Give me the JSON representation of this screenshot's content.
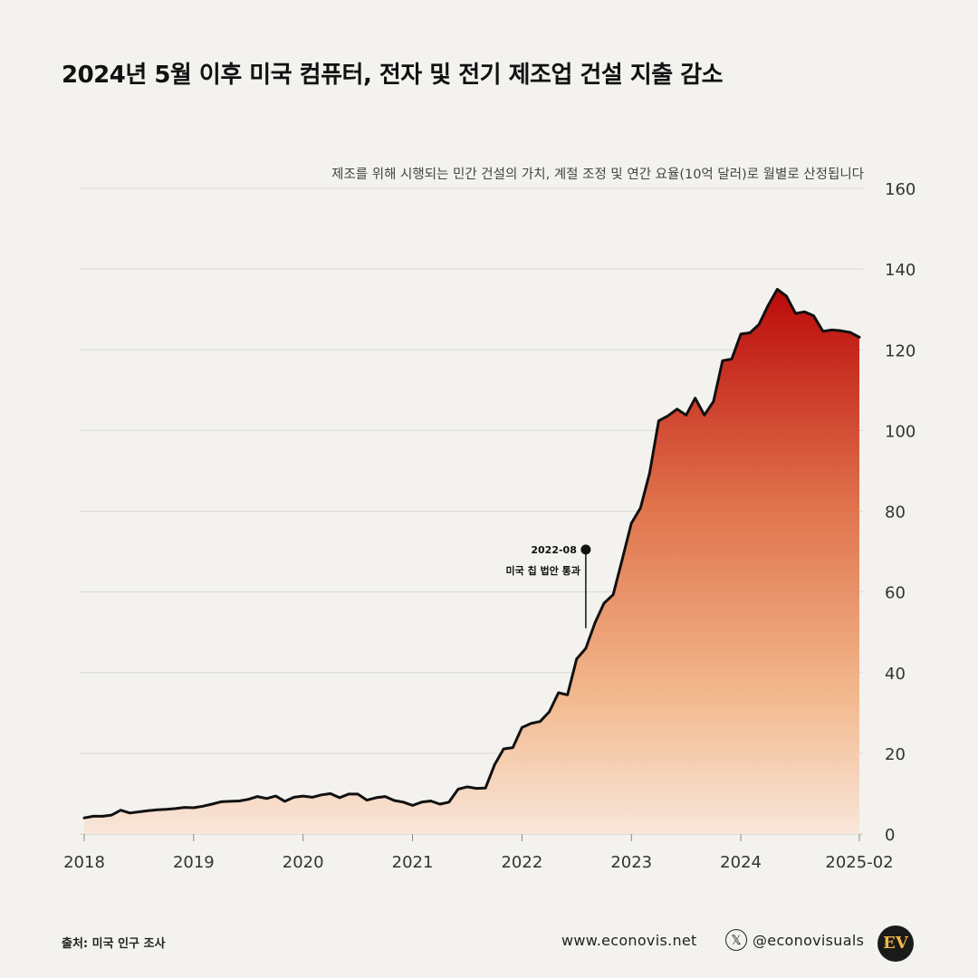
{
  "title": "2024년 5월 이후 미국 컴퓨터, 전자 및 전기 제조업 건설 지출 감소",
  "subtitle": "제조를 위해 시행되는 민간 건설의 가치, 계절 조정 및 연간 요율(10억 달러)로 월별로 산정됩니다",
  "footer": {
    "source": "출처: 미국 인구 조사",
    "site": "www.econovis.net",
    "x_icon": "x-logo-icon",
    "x_glyph": "𝕏",
    "handle": "@econovisuals",
    "logo": "EV"
  },
  "colors": {
    "fill_top": "#bb0a0a",
    "fill_mid": "#e0734c",
    "fill_low": "#f3b98e",
    "fill_bottom": "#f8e6da",
    "line": "#111111",
    "grid": "#d9d8d4"
  },
  "chart_data": {
    "type": "area",
    "title": "2024년 5월 이후 미국 컴퓨터, 전자 및 전기 제조업 건설 지출 감소",
    "ylabel": "",
    "xlabel": "",
    "y_axis_side": "right",
    "ylim": [
      0,
      160
    ],
    "y_ticks": [
      0,
      20,
      40,
      60,
      80,
      100,
      120,
      140,
      160
    ],
    "x_range": [
      "2018-01",
      "2025-02"
    ],
    "x_ticks": [
      {
        "date": "2018-01",
        "label": "2018"
      },
      {
        "date": "2019-01",
        "label": "2019"
      },
      {
        "date": "2020-01",
        "label": "2020"
      },
      {
        "date": "2021-01",
        "label": "2021"
      },
      {
        "date": "2022-01",
        "label": "2022"
      },
      {
        "date": "2023-01",
        "label": "2023"
      },
      {
        "date": "2024-01",
        "label": "2024"
      },
      {
        "date": "2025-02",
        "label": "2025-02"
      }
    ],
    "grid": true,
    "annotation": {
      "date": "2022-08",
      "label": "미국 칩 법안 통과",
      "marker_y": 70.5,
      "line_to_y": 51
    },
    "series": [
      {
        "values": [
          {
            "x": "2018-01",
            "y": 4.0
          },
          {
            "x": "2018-02",
            "y": 4.4
          },
          {
            "x": "2018-03",
            "y": 4.4
          },
          {
            "x": "2018-04",
            "y": 4.7
          },
          {
            "x": "2018-05",
            "y": 5.9
          },
          {
            "x": "2018-06",
            "y": 5.2
          },
          {
            "x": "2018-07",
            "y": 5.5
          },
          {
            "x": "2018-08",
            "y": 5.8
          },
          {
            "x": "2018-09",
            "y": 6.0
          },
          {
            "x": "2018-10",
            "y": 6.1
          },
          {
            "x": "2018-11",
            "y": 6.3
          },
          {
            "x": "2018-12",
            "y": 6.6
          },
          {
            "x": "2019-01",
            "y": 6.5
          },
          {
            "x": "2019-02",
            "y": 6.9
          },
          {
            "x": "2019-03",
            "y": 7.4
          },
          {
            "x": "2019-04",
            "y": 8.0
          },
          {
            "x": "2019-05",
            "y": 8.1
          },
          {
            "x": "2019-06",
            "y": 8.2
          },
          {
            "x": "2019-07",
            "y": 8.6
          },
          {
            "x": "2019-08",
            "y": 9.3
          },
          {
            "x": "2019-09",
            "y": 8.8
          },
          {
            "x": "2019-10",
            "y": 9.4
          },
          {
            "x": "2019-11",
            "y": 8.1
          },
          {
            "x": "2019-12",
            "y": 9.1
          },
          {
            "x": "2020-01",
            "y": 9.4
          },
          {
            "x": "2020-02",
            "y": 9.1
          },
          {
            "x": "2020-03",
            "y": 9.7
          },
          {
            "x": "2020-04",
            "y": 10.0
          },
          {
            "x": "2020-05",
            "y": 9.0
          },
          {
            "x": "2020-06",
            "y": 9.9
          },
          {
            "x": "2020-07",
            "y": 9.9
          },
          {
            "x": "2020-08",
            "y": 8.4
          },
          {
            "x": "2020-09",
            "y": 9.0
          },
          {
            "x": "2020-10",
            "y": 9.3
          },
          {
            "x": "2020-11",
            "y": 8.3
          },
          {
            "x": "2020-12",
            "y": 7.9
          },
          {
            "x": "2021-01",
            "y": 7.1
          },
          {
            "x": "2021-02",
            "y": 7.9
          },
          {
            "x": "2021-03",
            "y": 8.2
          },
          {
            "x": "2021-04",
            "y": 7.4
          },
          {
            "x": "2021-05",
            "y": 7.9
          },
          {
            "x": "2021-06",
            "y": 11.1
          },
          {
            "x": "2021-07",
            "y": 11.7
          },
          {
            "x": "2021-08",
            "y": 11.3
          },
          {
            "x": "2021-09",
            "y": 11.4
          },
          {
            "x": "2021-10",
            "y": 17.2
          },
          {
            "x": "2021-11",
            "y": 21.1
          },
          {
            "x": "2021-12",
            "y": 21.4
          },
          {
            "x": "2022-01",
            "y": 26.4
          },
          {
            "x": "2022-02",
            "y": 27.4
          },
          {
            "x": "2022-03",
            "y": 27.9
          },
          {
            "x": "2022-04",
            "y": 30.3
          },
          {
            "x": "2022-05",
            "y": 35.0
          },
          {
            "x": "2022-06",
            "y": 34.5
          },
          {
            "x": "2022-07",
            "y": 43.4
          },
          {
            "x": "2022-08",
            "y": 46.0
          },
          {
            "x": "2022-09",
            "y": 52.3
          },
          {
            "x": "2022-10",
            "y": 57.2
          },
          {
            "x": "2022-11",
            "y": 59.3
          },
          {
            "x": "2022-12",
            "y": 68.1
          },
          {
            "x": "2023-01",
            "y": 77.0
          },
          {
            "x": "2023-02",
            "y": 80.8
          },
          {
            "x": "2023-03",
            "y": 89.5
          },
          {
            "x": "2023-04",
            "y": 102.4
          },
          {
            "x": "2023-05",
            "y": 103.6
          },
          {
            "x": "2023-06",
            "y": 105.3
          },
          {
            "x": "2023-07",
            "y": 103.8
          },
          {
            "x": "2023-08",
            "y": 108.0
          },
          {
            "x": "2023-09",
            "y": 103.8
          },
          {
            "x": "2023-10",
            "y": 107.2
          },
          {
            "x": "2023-11",
            "y": 117.3
          },
          {
            "x": "2023-12",
            "y": 117.7
          },
          {
            "x": "2024-01",
            "y": 123.9
          },
          {
            "x": "2024-02",
            "y": 124.2
          },
          {
            "x": "2024-03",
            "y": 126.3
          },
          {
            "x": "2024-04",
            "y": 131.0
          },
          {
            "x": "2024-05",
            "y": 135.0
          },
          {
            "x": "2024-06",
            "y": 133.3
          },
          {
            "x": "2024-07",
            "y": 129.0
          },
          {
            "x": "2024-08",
            "y": 129.4
          },
          {
            "x": "2024-09",
            "y": 128.4
          },
          {
            "x": "2024-10",
            "y": 124.6
          },
          {
            "x": "2024-11",
            "y": 124.9
          },
          {
            "x": "2024-12",
            "y": 124.7
          },
          {
            "x": "2025-01",
            "y": 124.3
          },
          {
            "x": "2025-02",
            "y": 123.1
          }
        ]
      }
    ]
  }
}
